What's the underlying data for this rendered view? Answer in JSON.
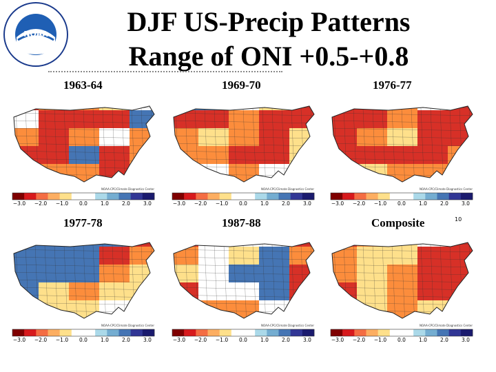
{
  "title_line1": "DJF US-Precip Patterns",
  "title_line2": "Range of ONI +0.5-+0.8",
  "logo_text": "NOAA",
  "slide_number": "10",
  "colorbar_ticks": [
    "−3.0",
    "−2.0",
    "−1.0",
    "0.0",
    "1.0",
    "2.0",
    "3.0"
  ],
  "credit": "NOAA-CPC/Climate Diagnostics Center",
  "panels": [
    {
      "label": "1963-64",
      "pattern": [
        "r",
        "o",
        "o",
        "y",
        "w",
        "w",
        "r",
        "r",
        "r",
        "b",
        "o",
        "r",
        "o",
        "w",
        "o",
        "r",
        "r",
        "b",
        "r",
        "o",
        "y",
        "o",
        "o",
        "r",
        "b"
      ]
    },
    {
      "label": "1969-70",
      "pattern": [
        "b",
        "b",
        "w",
        "y",
        "r",
        "r",
        "r",
        "o",
        "r",
        "r",
        "o",
        "y",
        "o",
        "r",
        "y",
        "o",
        "o",
        "r",
        "r",
        "y",
        "y",
        "w",
        "o",
        "w",
        "y"
      ]
    },
    {
      "label": "1976-77",
      "pattern": [
        "r",
        "r",
        "o",
        "w",
        "r",
        "r",
        "r",
        "o",
        "r",
        "r",
        "r",
        "o",
        "y",
        "r",
        "r",
        "r",
        "r",
        "r",
        "r",
        "o",
        "o",
        "y",
        "o",
        "o",
        "b"
      ]
    },
    {
      "label": "1977-78",
      "pattern": [
        "b",
        "b",
        "b",
        "b",
        "r",
        "b",
        "b",
        "b",
        "r",
        "o",
        "b",
        "b",
        "b",
        "o",
        "y",
        "b",
        "y",
        "o",
        "y",
        "y",
        "o",
        "y",
        "y",
        "w",
        "y"
      ]
    },
    {
      "label": "1987-88",
      "pattern": [
        "r",
        "w",
        "w",
        "w",
        "r",
        "o",
        "w",
        "y",
        "b",
        "o",
        "y",
        "w",
        "b",
        "b",
        "r",
        "r",
        "w",
        "w",
        "b",
        "r",
        "w",
        "o",
        "o",
        "w",
        "o"
      ]
    },
    {
      "label": "Composite",
      "pattern": [
        "r",
        "o",
        "y",
        "w",
        "r",
        "o",
        "y",
        "y",
        "r",
        "r",
        "o",
        "y",
        "o",
        "r",
        "r",
        "r",
        "y",
        "o",
        "r",
        "r",
        "w",
        "y",
        "o",
        "y",
        "b"
      ]
    }
  ]
}
